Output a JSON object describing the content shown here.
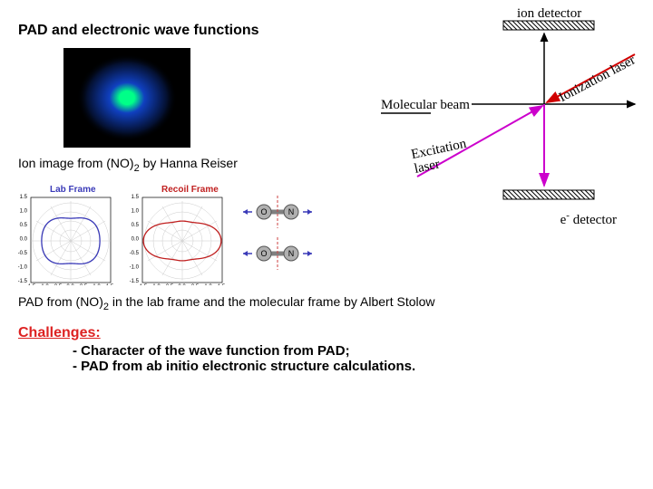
{
  "title": "PAD and electronic wave functions",
  "ion_image": {
    "width": 140,
    "height": 110,
    "bg": "#000000",
    "halo_color": "#1040c0",
    "center_color": "#00ff88"
  },
  "diagram": {
    "labels": {
      "ion_detector": "ion detector",
      "e_detector_pre": "e",
      "e_detector_sup": "-",
      "e_detector_post": " detector",
      "mol_beam": "Molecular beam",
      "excitation": "Excitation\nlaser",
      "ionization": "Ionization laser"
    },
    "colors": {
      "axis": "#000000",
      "excitation_arrow": "#cc00cc",
      "ionization_arrow": "#d00000",
      "detector_hatch": "#000000"
    }
  },
  "caption_ion": {
    "pre": "Ion image from (NO)",
    "sub": "2",
    "post": " by Hanna Reiser"
  },
  "polar": {
    "lab_label": "Lab Frame",
    "lab_color": "#3a3ab8",
    "recoil_label": "Recoil Frame",
    "recoil_color": "#c02020",
    "ticks": [
      "-1.5",
      "-1.0",
      "-0.5",
      "0.0",
      "0.5",
      "1.0",
      "1.5"
    ],
    "mol_labels": [
      "O",
      "N",
      "O",
      "N"
    ],
    "mol_atom_color": "#b0b0b0",
    "mol_bond_color": "#808080",
    "arrow_color": "#3a3ab8",
    "dash_color": "#cc4040"
  },
  "caption_pad": {
    "pre": "PAD from (NO)",
    "sub": "2",
    "post": " in the lab frame and the molecular frame by Albert Stolow"
  },
  "challenges": {
    "title": "Challenges:",
    "items": [
      "- Character of the wave function from PAD;",
      "- PAD from ab initio electronic structure calculations."
    ]
  }
}
